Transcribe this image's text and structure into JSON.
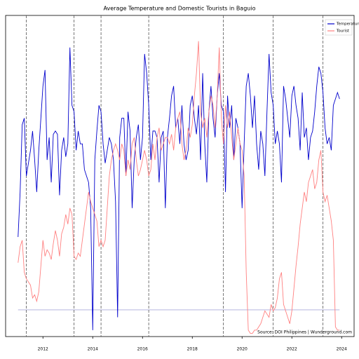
{
  "chart_data": {
    "type": "line",
    "title": "Average Temperature and Domestic Tourists in Baguio",
    "annotation": "Source: DOI Philippines | Wunderground.com",
    "x": [
      "2011-01",
      "2011-02",
      "2011-03",
      "2011-04",
      "2011-05",
      "2011-06",
      "2011-07",
      "2011-08",
      "2011-09",
      "2011-10",
      "2011-11",
      "2011-12",
      "2012-01",
      "2012-02",
      "2012-03",
      "2012-04",
      "2012-05",
      "2012-06",
      "2012-07",
      "2012-08",
      "2012-09",
      "2012-10",
      "2012-11",
      "2012-12",
      "2013-01",
      "2013-02",
      "2013-03",
      "2013-04",
      "2013-05",
      "2013-06",
      "2013-07",
      "2013-08",
      "2013-09",
      "2013-10",
      "2013-11",
      "2013-12",
      "2014-01",
      "2014-02",
      "2014-03",
      "2014-04",
      "2014-05",
      "2014-06",
      "2014-07",
      "2014-08",
      "2014-09",
      "2014-10",
      "2014-11",
      "2014-12",
      "2015-01",
      "2015-02",
      "2015-03",
      "2015-04",
      "2015-05",
      "2015-06",
      "2015-07",
      "2015-08",
      "2015-09",
      "2015-10",
      "2015-11",
      "2015-12",
      "2016-01",
      "2016-02",
      "2016-03",
      "2016-04",
      "2016-05",
      "2016-06",
      "2016-07",
      "2016-08",
      "2016-09",
      "2016-10",
      "2016-11",
      "2016-12",
      "2017-01",
      "2017-02",
      "2017-03",
      "2017-04",
      "2017-05",
      "2017-06",
      "2017-07",
      "2017-08",
      "2017-09",
      "2017-10",
      "2017-11",
      "2017-12",
      "2018-01",
      "2018-02",
      "2018-03",
      "2018-04",
      "2018-05",
      "2018-06",
      "2018-07",
      "2018-08",
      "2018-09",
      "2018-10",
      "2018-11",
      "2018-12",
      "2019-01",
      "2019-02",
      "2019-03",
      "2019-04",
      "2019-05",
      "2019-06",
      "2019-07",
      "2019-08",
      "2019-09",
      "2019-10",
      "2019-11",
      "2019-12",
      "2020-01",
      "2020-02",
      "2020-03",
      "2020-04",
      "2020-05",
      "2020-06",
      "2020-07",
      "2020-08",
      "2020-09",
      "2020-10",
      "2020-11",
      "2020-12",
      "2021-01",
      "2021-02",
      "2021-03",
      "2021-04",
      "2021-05",
      "2021-06",
      "2021-07",
      "2021-08",
      "2021-09",
      "2021-10",
      "2021-11",
      "2021-12",
      "2022-01",
      "2022-02",
      "2022-03",
      "2022-04",
      "2022-05",
      "2022-06",
      "2022-07",
      "2022-08",
      "2022-09",
      "2022-10",
      "2022-11",
      "2022-12",
      "2023-01",
      "2023-02",
      "2023-03",
      "2023-04",
      "2023-05",
      "2023-06",
      "2023-07",
      "2023-08",
      "2023-09",
      "2023-10",
      "2023-11",
      "2023-12"
    ],
    "series": [
      {
        "name": "Temperature",
        "color": "#0000cc",
        "fill": "#e0e0ff",
        "values": [
          31,
          45,
          66,
          68,
          50,
          54,
          58,
          64,
          55,
          45,
          58,
          68,
          78,
          83,
          55,
          62,
          48,
          63,
          64,
          63,
          44,
          58,
          62,
          56,
          60,
          90,
          72,
          70,
          58,
          64,
          60,
          60,
          52,
          50,
          48,
          40,
          2,
          55,
          64,
          72,
          70,
          60,
          54,
          58,
          62,
          60,
          55,
          42,
          6,
          62,
          68,
          68,
          50,
          70,
          64,
          40,
          55,
          62,
          66,
          55,
          62,
          88,
          82,
          72,
          55,
          64,
          64,
          62,
          48,
          62,
          64,
          40,
          62,
          68,
          75,
          78,
          65,
          68,
          60,
          72,
          60,
          55,
          58,
          72,
          75,
          68,
          63,
          72,
          55,
          82,
          60,
          48,
          70,
          78,
          68,
          62,
          75,
          82,
          72,
          70,
          45,
          75,
          65,
          72,
          55,
          68,
          65,
          60,
          40,
          60,
          78,
          82,
          75,
          65,
          75,
          60,
          52,
          64,
          60,
          50,
          70,
          88,
          76,
          72,
          60,
          64,
          60,
          48,
          78,
          74,
          68,
          62,
          75,
          78,
          72,
          68,
          58,
          76,
          62,
          65,
          55,
          62,
          64,
          70,
          78,
          84,
          82,
          76,
          65,
          60,
          62,
          58,
          72,
          74,
          76,
          74
        ]
      },
      {
        "name": "Tourist",
        "color": "#ff8080",
        "values": [
          23,
          28,
          30,
          20,
          18,
          17,
          16,
          12,
          13,
          11,
          14,
          22,
          30,
          25,
          27,
          26,
          24,
          29,
          33,
          30,
          25,
          32,
          34,
          38,
          35,
          40,
          38,
          25,
          24,
          26,
          25,
          30,
          35,
          40,
          45,
          42,
          40,
          38,
          36,
          28,
          30,
          28,
          30,
          40,
          50,
          55,
          58,
          60,
          58,
          55,
          60,
          58,
          50,
          55,
          52,
          60,
          62,
          55,
          50,
          52,
          55,
          58,
          55,
          50,
          52,
          60,
          55,
          62,
          65,
          58,
          60,
          62,
          62,
          60,
          63,
          58,
          65,
          68,
          70,
          60,
          55,
          58,
          65,
          62,
          66,
          75,
          82,
          92,
          70,
          65,
          68,
          62,
          70,
          75,
          72,
          65,
          75,
          90,
          68,
          60,
          72,
          65,
          70,
          62,
          55,
          60,
          65,
          60,
          58,
          50,
          20,
          2,
          1,
          1,
          2,
          2,
          3,
          4,
          6,
          8,
          7,
          6,
          10,
          8,
          9,
          12,
          18,
          20,
          10,
          8,
          6,
          4,
          8,
          15,
          22,
          28,
          35,
          40,
          45,
          42,
          48,
          50,
          52,
          46,
          48,
          55,
          58,
          45,
          42,
          44,
          40,
          36,
          30,
          3,
          2,
          2
        ]
      }
    ],
    "fill_baseline": 2.6,
    "hline": 8.3,
    "vlines": [
      "2011-05",
      "2013-04",
      "2014-05",
      "2016-04",
      "2019-04",
      "2021-04",
      "2023-04"
    ],
    "xlim": [
      "2010-07",
      "2024-07"
    ],
    "xticks": [
      {
        "value": "2012-01",
        "label": "2012"
      },
      {
        "value": "2014-01",
        "label": "2014"
      },
      {
        "value": "2016-01",
        "label": "2016"
      },
      {
        "value": "2018-01",
        "label": "2018"
      },
      {
        "value": "2020-01",
        "label": "2020"
      },
      {
        "value": "2022-01",
        "label": "2022"
      },
      {
        "value": "2024-01",
        "label": "2024"
      }
    ],
    "ylim": [
      0,
      100
    ],
    "legend": "upper right"
  }
}
